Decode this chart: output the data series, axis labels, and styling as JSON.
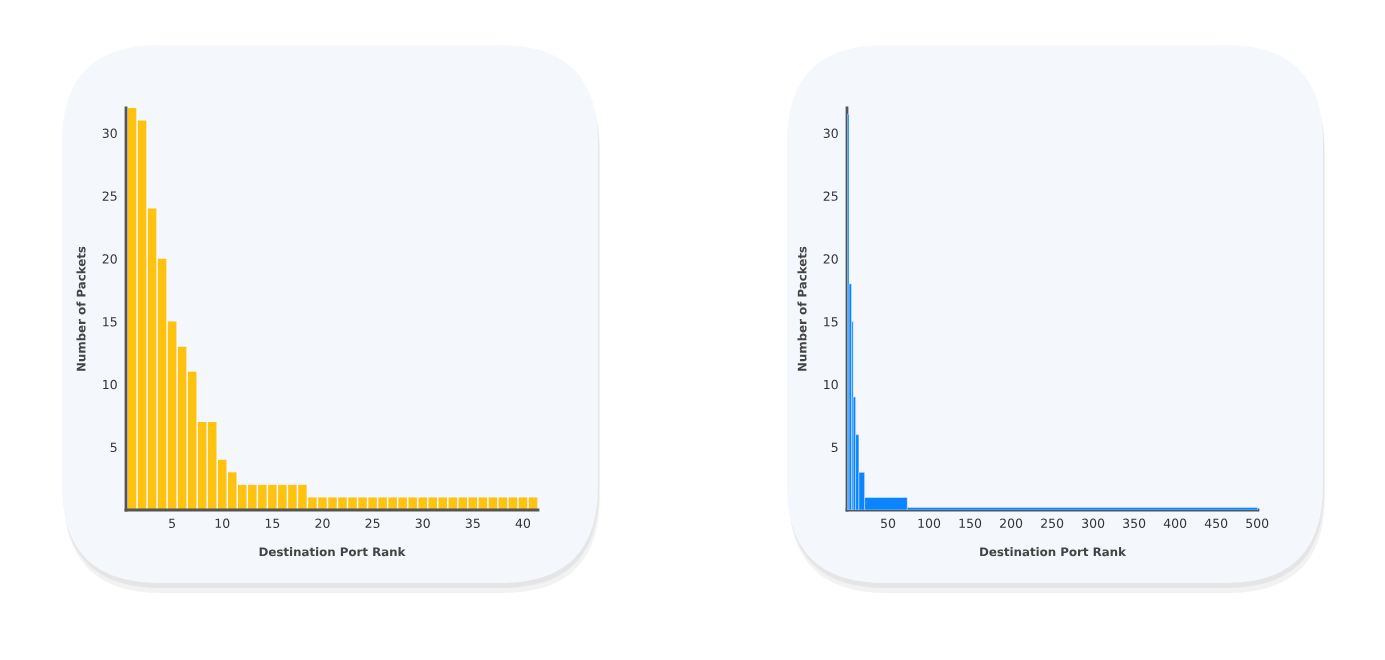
{
  "chart_data": [
    {
      "type": "bar",
      "xlabel": "Destination Port Rank",
      "ylabel": "Number of Packets",
      "x": [
        1,
        2,
        3,
        4,
        5,
        6,
        7,
        8,
        9,
        10,
        11,
        12,
        13,
        14,
        15,
        16,
        17,
        18,
        19,
        20,
        21,
        22,
        23,
        24,
        25,
        26,
        27,
        28,
        29,
        30,
        31,
        32,
        33,
        34,
        35,
        36,
        37,
        38,
        39,
        40,
        41
      ],
      "values": [
        32,
        31,
        24,
        20,
        15,
        13,
        11,
        7,
        7,
        4,
        3,
        2,
        2,
        2,
        2,
        2,
        2,
        2,
        1,
        1,
        1,
        1,
        1,
        1,
        1,
        1,
        1,
        1,
        1,
        1,
        1,
        1,
        1,
        1,
        1,
        1,
        1,
        1,
        1,
        1,
        1
      ],
      "color": "#ffc20e",
      "xlim": [
        0.4,
        41.5
      ],
      "xticks": [
        5,
        10,
        15,
        20,
        25,
        30,
        35,
        40
      ],
      "ylim": [
        0,
        32
      ],
      "yticks": [
        5,
        10,
        15,
        20,
        25,
        30
      ],
      "grid": false
    },
    {
      "type": "histogram",
      "xlabel": "Destination Port Rank",
      "ylabel": "Number of Packets",
      "bins": [
        0.5,
        2.5,
        5.5,
        7.5,
        10.5,
        14.5,
        21.5,
        73.5,
        500.5
      ],
      "values": [
        31.5,
        18,
        15,
        9,
        6,
        3,
        1,
        0.2
      ],
      "color": "#0a84ff",
      "xlim": [
        0,
        501
      ],
      "xticks": [
        50,
        100,
        150,
        200,
        250,
        300,
        350,
        400,
        450,
        500
      ],
      "ylim": [
        0,
        32
      ],
      "yticks": [
        5,
        10,
        15,
        20,
        25,
        30
      ],
      "grid": false
    }
  ]
}
